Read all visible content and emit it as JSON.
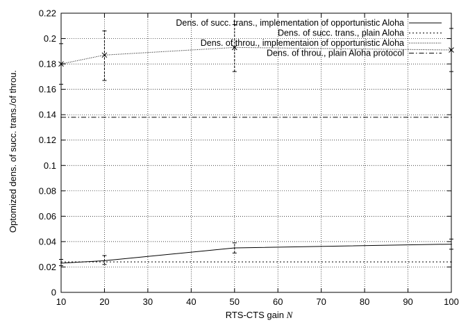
{
  "chart_data": {
    "type": "line",
    "title": "",
    "xlabel": "RTS-CTS gain",
    "xlabel_var": "N",
    "ylabel": "Optomized dens. of succ. trans./of throu.",
    "xlim": [
      10,
      100
    ],
    "ylim": [
      0,
      0.22
    ],
    "xticks": [
      10,
      20,
      30,
      40,
      50,
      60,
      70,
      80,
      90,
      100
    ],
    "yticks": [
      0,
      0.02,
      0.04,
      0.06,
      0.08,
      0.1,
      0.12,
      0.14,
      0.16,
      0.18,
      0.2,
      0.22
    ],
    "xtick_labels": [
      "10",
      "20",
      "30",
      "40",
      "50",
      "60",
      "70",
      "80",
      "90",
      "100"
    ],
    "ytick_labels": [
      "0",
      "0.02",
      "0.04",
      "0.06",
      "0.08",
      "0.1",
      "0.12",
      "0.14",
      "0.16",
      "0.18",
      "0.2",
      "0.22"
    ],
    "grid": true,
    "legend_position": "top-right",
    "series": [
      {
        "name": "Dens. of succ. trans., implementation of opportunistic Aloha",
        "style": "solid",
        "marker": "errorbar",
        "x": [
          10,
          20,
          50,
          100
        ],
        "y": [
          0.023,
          0.025,
          0.035,
          0.038
        ],
        "err_low": [
          0.021,
          0.022,
          0.031,
          0.034
        ],
        "err_high": [
          0.026,
          0.029,
          0.039,
          0.042
        ]
      },
      {
        "name": "Dens. of succ. trans., plain Aloha",
        "style": "dotted",
        "x": [
          10,
          100
        ],
        "y": [
          0.024,
          0.024
        ]
      },
      {
        "name": "Dens. of throu., implementaion of opportunistic Aloha",
        "style": "dotted-fine",
        "marker": "x",
        "x": [
          10,
          20,
          50,
          100
        ],
        "y": [
          0.18,
          0.187,
          0.193,
          0.191
        ],
        "err_low": [
          0.164,
          0.167,
          0.174,
          0.174
        ],
        "err_high": [
          0.196,
          0.206,
          0.211,
          0.208
        ]
      },
      {
        "name": "Dens. of throu., plain Aloha protocol",
        "style": "dashdot",
        "x": [
          10,
          100
        ],
        "y": [
          0.138,
          0.138
        ]
      }
    ]
  }
}
